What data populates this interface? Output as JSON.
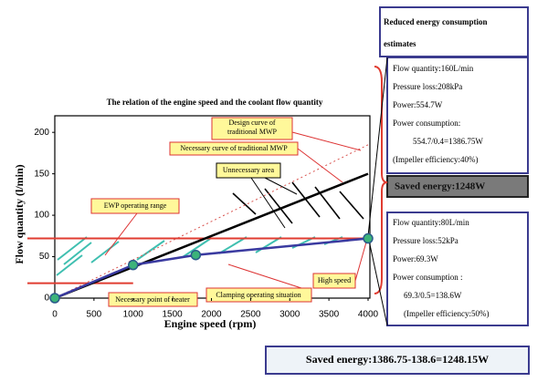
{
  "chart_data": {
    "type": "line",
    "title": "The relation of the engine speed and the coolant flow  quantity",
    "x_label": "Engine speed (rpm)",
    "y_label": "Flow quantity (l/min)",
    "xlim": [
      0,
      4000
    ],
    "xticks": [
      0,
      500,
      1000,
      1500,
      2000,
      2500,
      3000,
      3500,
      4000
    ],
    "ylim": [
      0,
      220
    ],
    "yticks": [
      0,
      50,
      100,
      150,
      200
    ],
    "series": [
      {
        "name": "Design curve of traditional MWP",
        "color": "#d9534f",
        "style": "dotted",
        "x": [
          0,
          4000
        ],
        "values": [
          0,
          185
        ]
      },
      {
        "name": "Necessary curve of traditional MWP",
        "color": "#000000",
        "style": "solid",
        "x": [
          0,
          4000
        ],
        "values": [
          0,
          150
        ]
      },
      {
        "name": "Clamping operating situation",
        "color": "#3a3aa0",
        "style": "solid",
        "marker_color": "#3cb37a",
        "x": [
          0,
          1000,
          1800,
          4000
        ],
        "values": [
          0,
          40,
          52,
          72
        ]
      }
    ],
    "ewp_range": {
      "label": "EWP operating range",
      "lower": 18,
      "upper": 72,
      "color": "#e03c31"
    },
    "annotations": [
      "Unnecessary area",
      "Necessary  point of heater",
      "High speed"
    ]
  },
  "panels": {
    "heading": "Reduced energy consumption estimates",
    "traditional": [
      "Flow quantity:160L/min",
      "Pressure loss:208kPa",
      "Power:554.7W",
      "Power consumption:",
      "554.7/0.4=1386.75W",
      "(Impeller efficiency:40%)"
    ],
    "saved": "Saved energy:1248W",
    "ewp": [
      "Flow quantity:80L/min",
      "Pressure loss:52kPa",
      "Power:69.3W",
      "Power consumption :",
      "69.3/0.5=138.6W",
      "(Impeller efficiency:50%)"
    ],
    "total": "Saved energy:1386.75-138.6=1248.15W"
  }
}
